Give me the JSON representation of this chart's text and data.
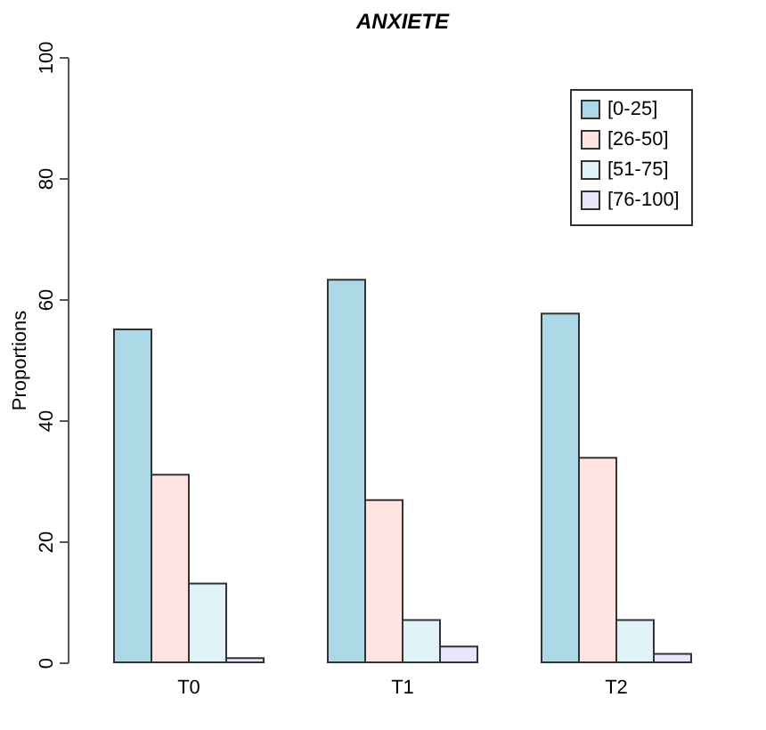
{
  "chart_data": {
    "type": "bar",
    "title": "ANXIETE",
    "ylabel": "Proportions",
    "categories": [
      "T0",
      "T1",
      "T2"
    ],
    "series": [
      {
        "name": "[0-25]",
        "color": "#add8e6",
        "values": [
          55,
          63.2,
          57.6
        ]
      },
      {
        "name": "[26-50]",
        "color": "#ffe4e1",
        "values": [
          31,
          26.8,
          33.8
        ]
      },
      {
        "name": "[51-75]",
        "color": "#e0f3f6",
        "values": [
          13,
          7,
          7
        ]
      },
      {
        "name": "[76-100]",
        "color": "#e6e6fa",
        "values": [
          0.7,
          2.6,
          1.4
        ]
      }
    ],
    "ylim": [
      0,
      100
    ],
    "yticks": [
      0,
      20,
      40,
      60,
      80,
      100
    ],
    "grid": false,
    "legend": "top right"
  }
}
